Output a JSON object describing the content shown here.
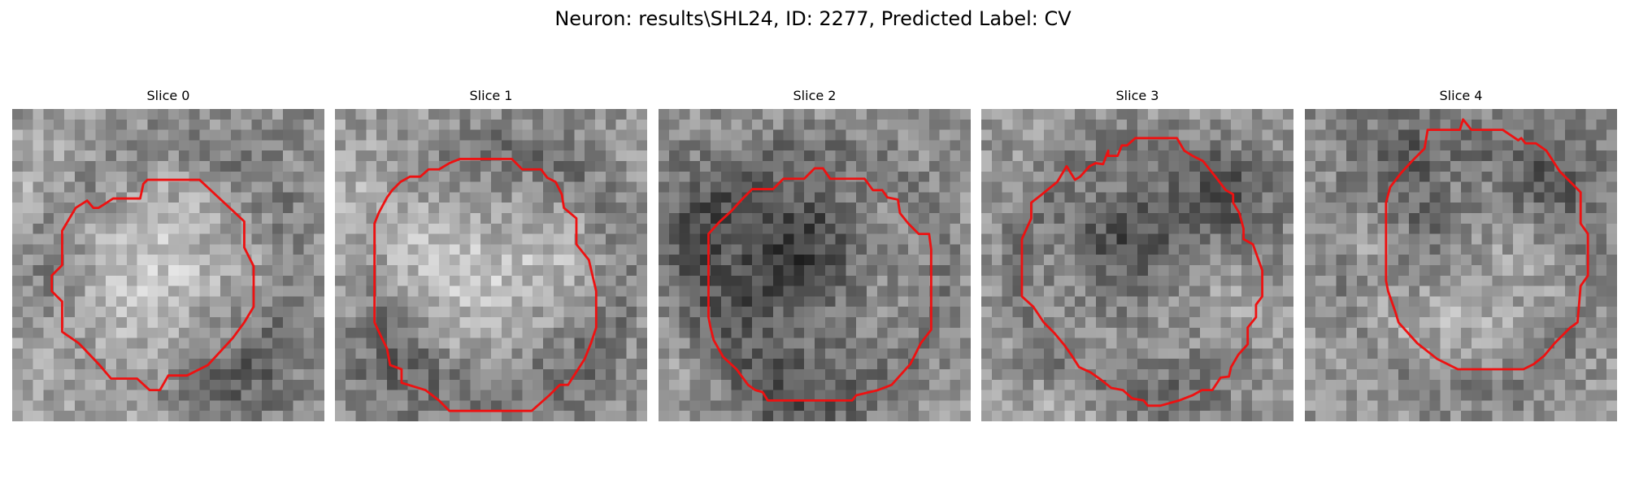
{
  "figure": {
    "title": "Neuron: results\\SHL24, ID: 2277, Predicted Label: CV"
  },
  "colors": {
    "contour": "#ee1111",
    "background": "#ffffff"
  },
  "panels": [
    {
      "title": "Slice 0",
      "seed": 11,
      "darkCenter": false
    },
    {
      "title": "Slice 1",
      "seed": 23,
      "darkCenter": false
    },
    {
      "title": "Slice 2",
      "seed": 37,
      "darkCenter": true
    },
    {
      "title": "Slice 3",
      "seed": 41,
      "darkCenter": true
    },
    {
      "title": "Slice 4",
      "seed": 53,
      "darkCenter": false
    }
  ]
}
